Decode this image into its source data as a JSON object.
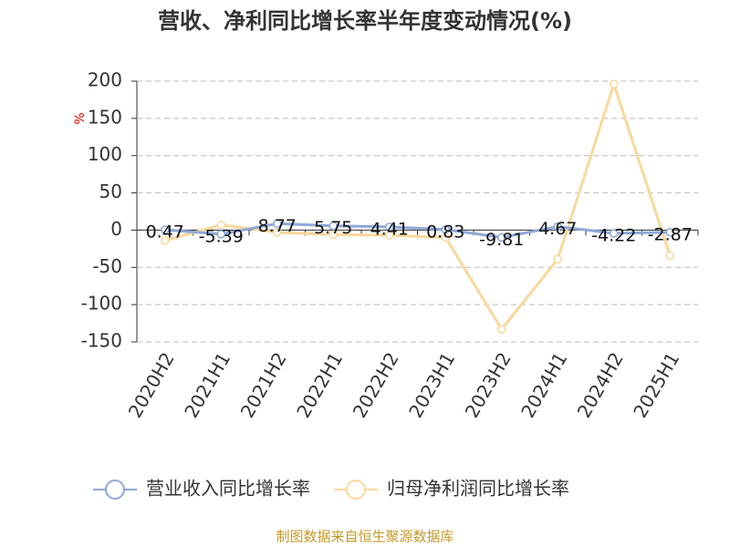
{
  "chart_data": {
    "type": "line",
    "title": "营收、净利同比增长率半年度变动情况(%)",
    "y_label": "%",
    "categories": [
      "2020H2",
      "2021H1",
      "2021H2",
      "2022H1",
      "2022H2",
      "2023H1",
      "2023H2",
      "2024H1",
      "2024H2",
      "2025H1"
    ],
    "series": [
      {
        "name": "营业收入同比增长率",
        "color": "#8ea8d8",
        "values": [
          0.47,
          -5.39,
          8.77,
          5.75,
          4.41,
          0.83,
          -9.81,
          4.67,
          -4.22,
          -2.87
        ],
        "show_labels": true
      },
      {
        "name": "归母净利润同比增长率",
        "color": "#f9d89c",
        "values": [
          -14,
          7,
          -3,
          -6,
          -7,
          -10,
          -133,
          -39,
          196,
          -34
        ]
      }
    ],
    "ylim": [
      -150,
      200
    ],
    "yticks": [
      -150,
      -100,
      -50,
      0,
      50,
      100,
      150,
      200
    ],
    "grid": true,
    "source": "制图数据来自恒生聚源数据库"
  }
}
